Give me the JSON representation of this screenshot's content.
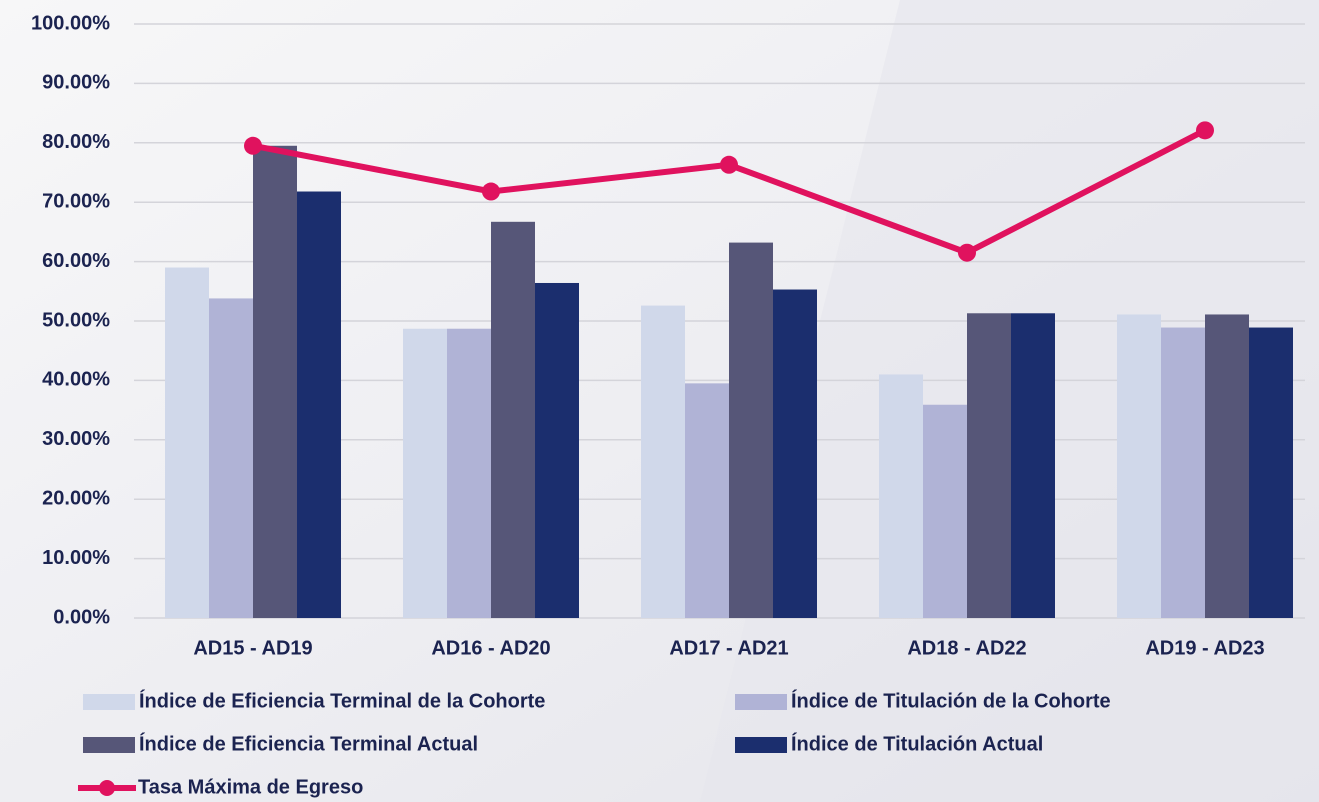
{
  "chart_data": {
    "type": "bar",
    "categories": [
      "AD15 - AD19",
      "AD16 - AD20",
      "AD17 - AD21",
      "AD18 - AD22",
      "AD19 - AD23"
    ],
    "series": [
      {
        "name": "Índice de Eficiencia Terminal de la Cohorte",
        "color": "#d0d8ea",
        "values": [
          59.0,
          48.7,
          52.6,
          41.0,
          51.1
        ]
      },
      {
        "name": "Índice de Titulación de la Cohorte",
        "color": "#b0b3d6",
        "values": [
          53.8,
          48.7,
          39.5,
          35.9,
          48.9
        ]
      },
      {
        "name": "Índice de Eficiencia Terminal Actual",
        "color": "#565678",
        "values": [
          79.5,
          66.7,
          63.2,
          51.3,
          51.1
        ]
      },
      {
        "name": "Índice de Titulación Actual",
        "color": "#1b2e6e",
        "values": [
          71.8,
          56.4,
          55.3,
          51.3,
          48.9
        ]
      },
      {
        "name": "Tasa Máxima de Egreso",
        "color": "#e0125e",
        "type": "line",
        "values": [
          79.5,
          71.8,
          76.3,
          61.5,
          82.1
        ]
      }
    ],
    "ylim": [
      0,
      100
    ],
    "yticks": [
      {
        "value": 0,
        "label": "0.00%"
      },
      {
        "value": 10,
        "label": "10.00%"
      },
      {
        "value": 20,
        "label": "20.00%"
      },
      {
        "value": 30,
        "label": "30.00%"
      },
      {
        "value": 40,
        "label": "40.00%"
      },
      {
        "value": 50,
        "label": "50.00%"
      },
      {
        "value": 60,
        "label": "60.00%"
      },
      {
        "value": 70,
        "label": "70.00%"
      },
      {
        "value": 80,
        "label": "80.00%"
      },
      {
        "value": 90,
        "label": "90.00%"
      },
      {
        "value": 100,
        "label": "100.00%"
      }
    ],
    "grid": true
  }
}
